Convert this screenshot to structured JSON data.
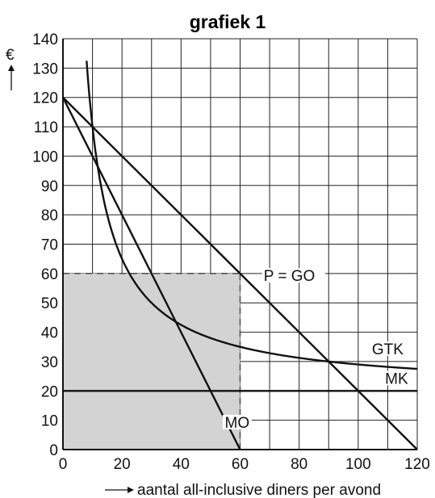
{
  "chart_data": {
    "type": "line",
    "title": "grafiek 1",
    "ylabel": "€",
    "xlabel": "aantal all-inclusive diners per avond",
    "xlim": [
      0,
      120
    ],
    "ylim": [
      0,
      140
    ],
    "x_ticks": [
      "0",
      "20",
      "40",
      "60",
      "80",
      "100",
      "120"
    ],
    "y_ticks": [
      "0",
      "10",
      "20",
      "30",
      "40",
      "50",
      "60",
      "70",
      "80",
      "90",
      "100",
      "110",
      "120",
      "130",
      "140"
    ],
    "grid": true,
    "shaded_area": {
      "x": [
        0,
        60
      ],
      "y": [
        0,
        60
      ],
      "color": "#d3d3d3"
    },
    "dashed_lines": [
      {
        "x": [
          0,
          60
        ],
        "y": [
          60,
          60
        ]
      },
      {
        "x": [
          60,
          60
        ],
        "y": [
          0,
          60
        ]
      }
    ],
    "series": [
      {
        "name": "P = GO",
        "x": [
          0,
          120
        ],
        "y": [
          120,
          0
        ]
      },
      {
        "name": "MO",
        "x": [
          0,
          60
        ],
        "y": [
          120,
          0
        ]
      },
      {
        "name": "MK",
        "x": [
          0,
          120
        ],
        "y": [
          20,
          20
        ]
      },
      {
        "name": "GTK",
        "fixed_cost": 900,
        "variable_cost": 20,
        "x_start": 8,
        "x_end": 120
      }
    ]
  }
}
